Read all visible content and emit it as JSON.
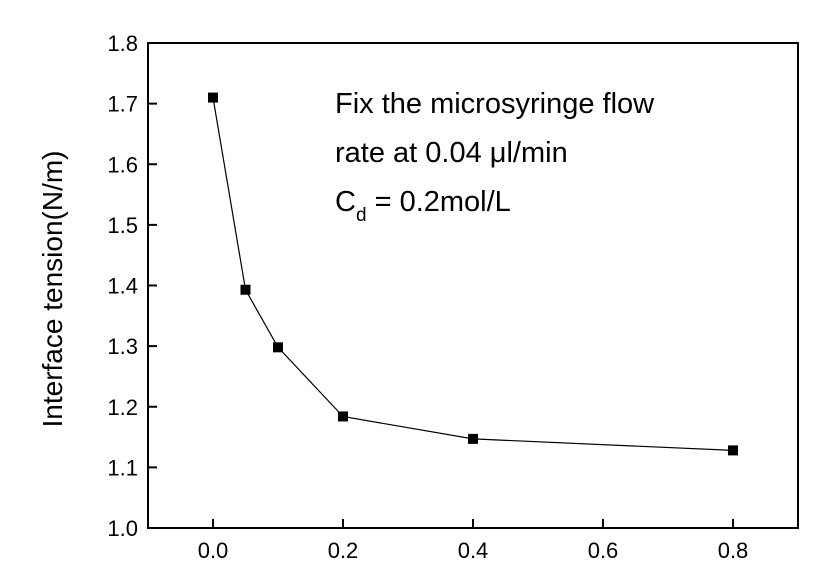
{
  "chart_data": {
    "type": "line",
    "x": [
      0.0,
      0.05,
      0.1,
      0.2,
      0.4,
      0.8
    ],
    "series": [
      {
        "values": [
          1.71,
          1.393,
          1.298,
          1.184,
          1.147,
          1.128
        ]
      }
    ],
    "xlim": [
      -0.1,
      0.9
    ],
    "ylim": [
      1.0,
      1.8
    ],
    "xticks": [
      0.0,
      0.2,
      0.4,
      0.6,
      0.8
    ],
    "xtick_labels": [
      "0.0",
      "0.2",
      "0.4",
      "0.6",
      "0.8"
    ],
    "yticks": [
      1.0,
      1.1,
      1.2,
      1.3,
      1.4,
      1.5,
      1.6,
      1.7,
      1.8
    ],
    "ytick_labels": [
      "1.0",
      "1.1",
      "1.2",
      "1.3",
      "1.4",
      "1.5",
      "1.6",
      "1.7",
      "1.8"
    ],
    "title": "",
    "xlabel": "",
    "ylabel": "Interface tension(N/m)",
    "grid": false,
    "marker": "square",
    "annotation": {
      "line1": "Fix the microsyringe flow",
      "line2": "rate at 0.04 μl/min",
      "line3_main": "C",
      "line3_sub": "d",
      "line3_rest": " = 0.2mol/L"
    }
  }
}
